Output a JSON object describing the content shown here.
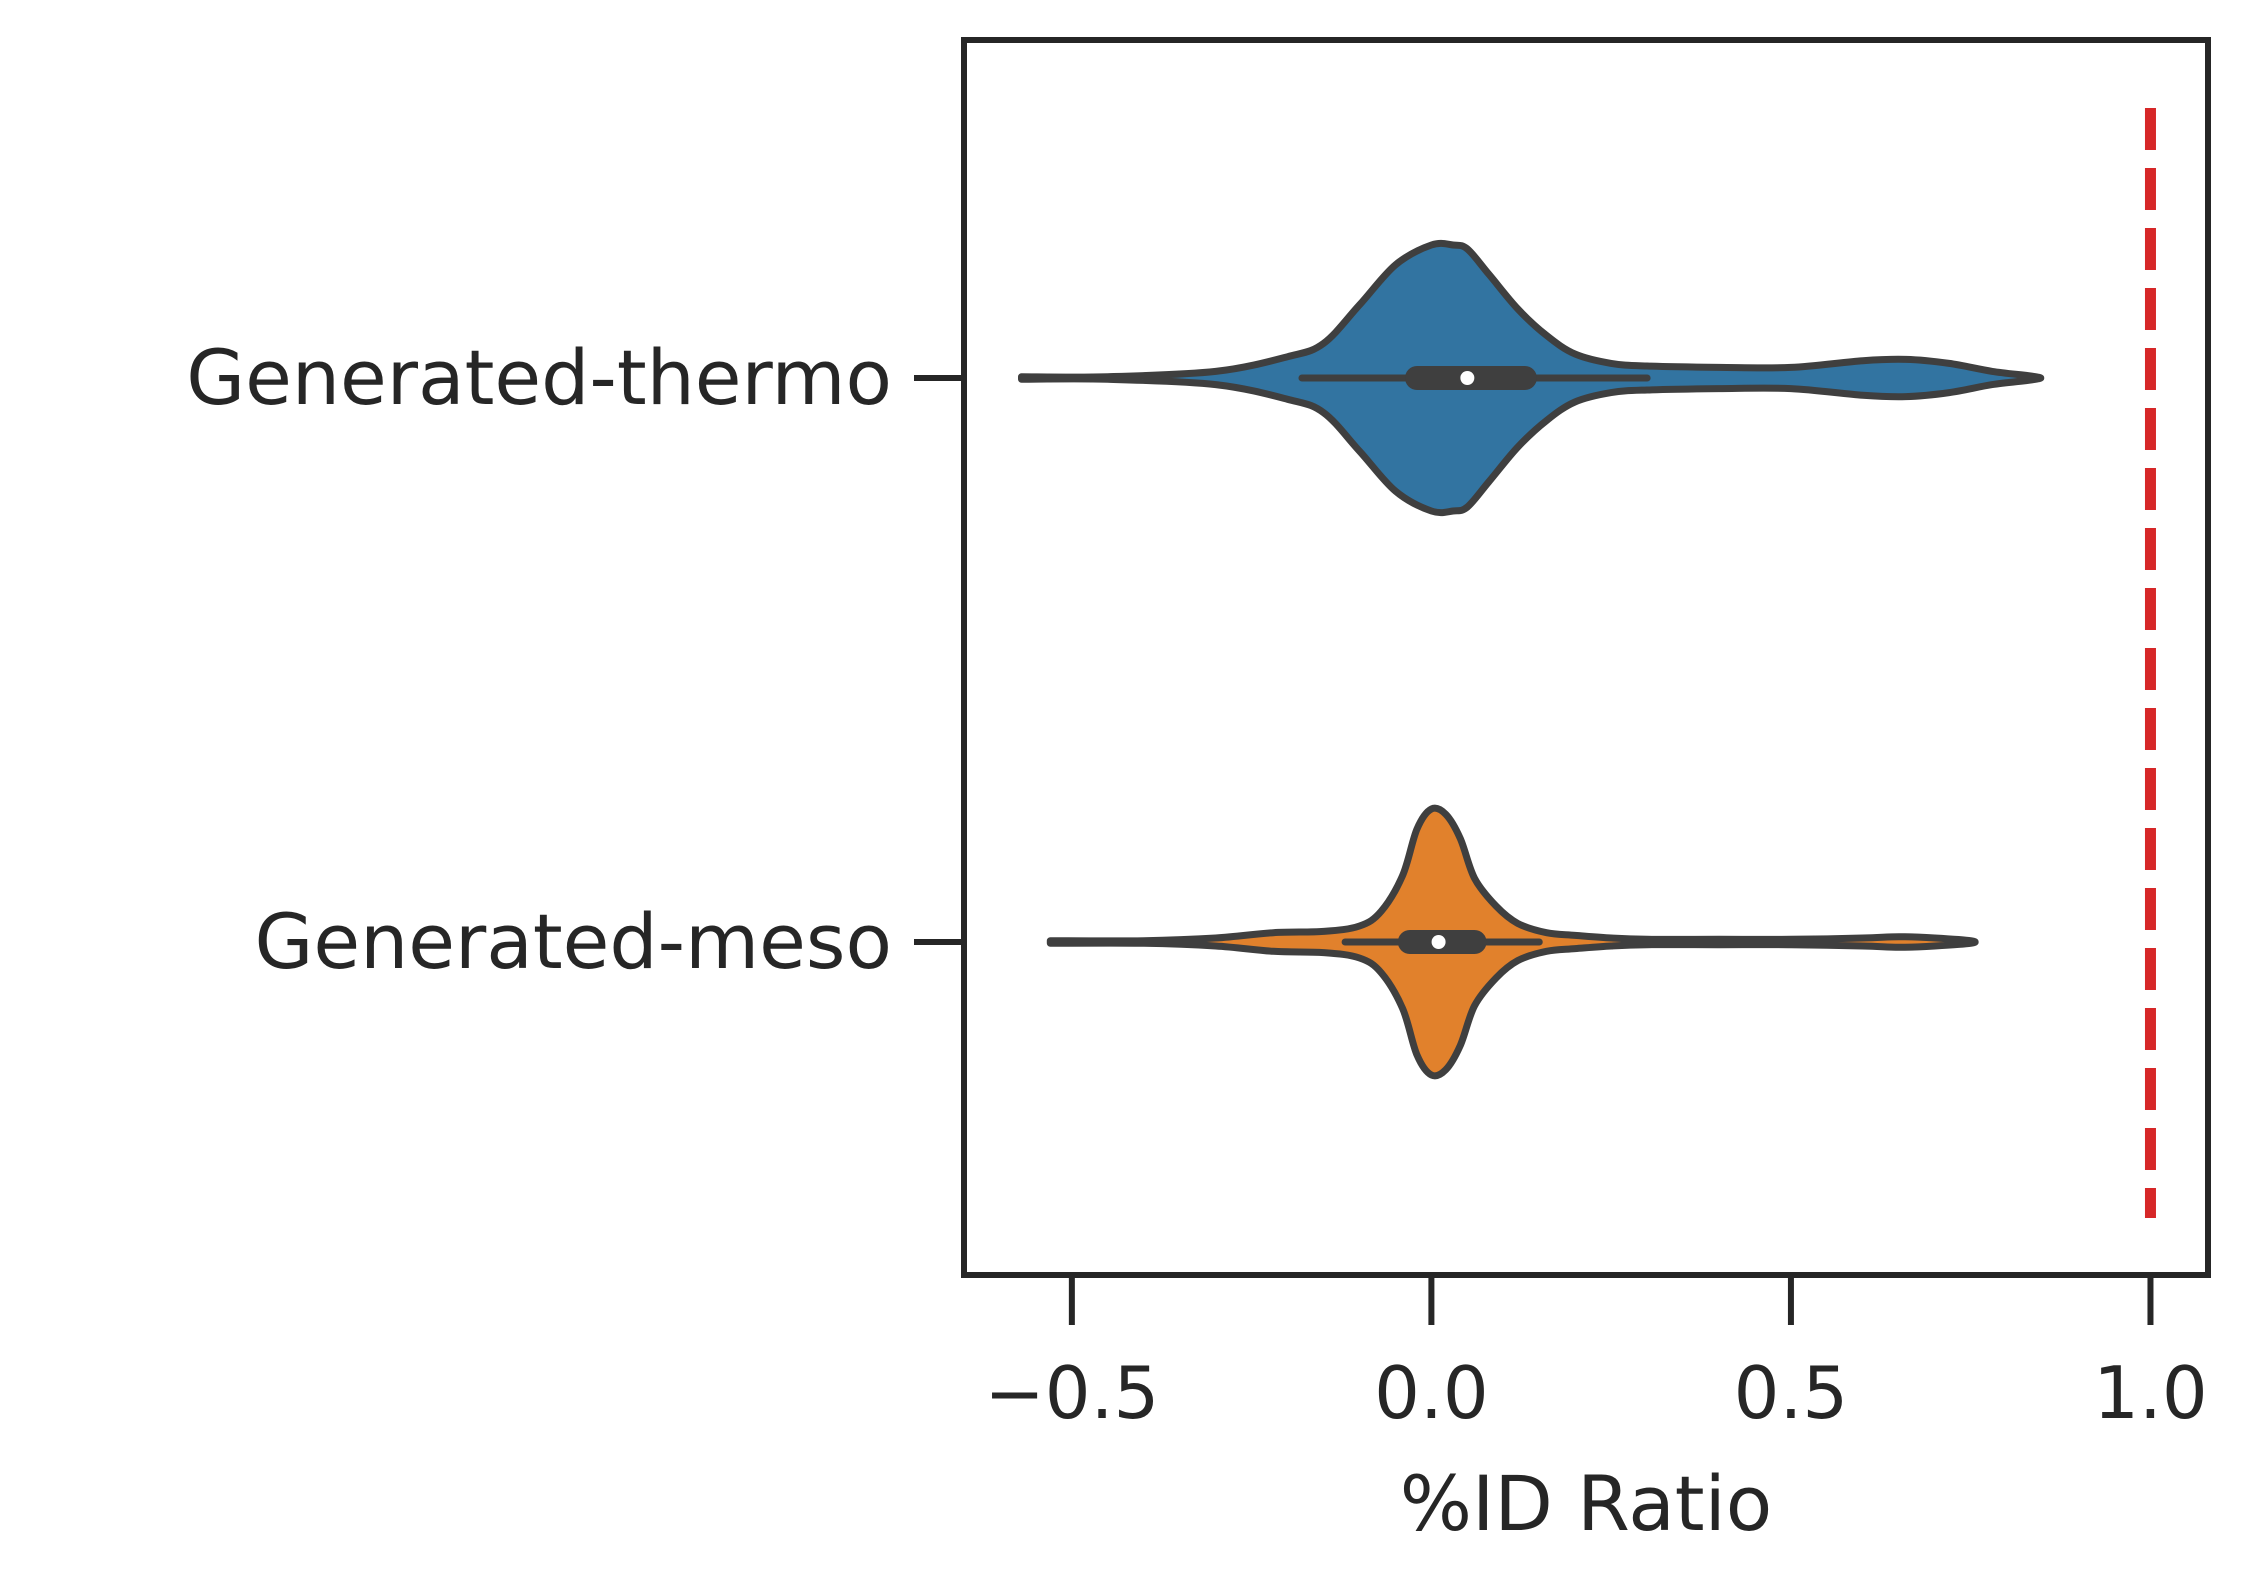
{
  "chart_data": {
    "type": "violin",
    "orientation": "horizontal",
    "title": "",
    "xlabel": "%ID Ratio",
    "ylabel": "",
    "xlim": [
      -0.65,
      1.08
    ],
    "xticks": [
      -0.5,
      0.0,
      0.5,
      1.0
    ],
    "xtick_labels": [
      "−0.5",
      "0.0",
      "0.5",
      "1.0"
    ],
    "categories": [
      "Generated-thermo",
      "Generated-meso"
    ],
    "grid": false,
    "legend": "none",
    "reference_line": {
      "x": 1.0,
      "style": "dashed",
      "color": "#d62728"
    },
    "series": [
      {
        "category": "Generated-thermo",
        "color": "#3274a1",
        "min": -0.57,
        "max": 0.84,
        "q1": -0.02,
        "median": 0.05,
        "q3": 0.13,
        "whisker_low": -0.18,
        "whisker_high": 0.3,
        "density_x": [
          -0.57,
          -0.45,
          -0.3,
          -0.2,
          -0.15,
          -0.1,
          -0.05,
          0.0,
          0.03,
          0.05,
          0.08,
          0.12,
          0.16,
          0.2,
          0.25,
          0.3,
          0.4,
          0.5,
          0.6,
          0.66,
          0.72,
          0.78,
          0.84
        ],
        "density_width": [
          0.01,
          0.01,
          0.05,
          0.16,
          0.26,
          0.55,
          0.85,
          1.0,
          1.0,
          0.97,
          0.78,
          0.52,
          0.32,
          0.18,
          0.11,
          0.09,
          0.08,
          0.08,
          0.13,
          0.14,
          0.11,
          0.05,
          0.01
        ]
      },
      {
        "category": "Generated-meso",
        "color": "#e1812c",
        "min": -0.53,
        "max": 0.75,
        "q1": -0.03,
        "median": 0.01,
        "q3": 0.06,
        "whisker_low": -0.12,
        "whisker_high": 0.15,
        "density_x": [
          -0.53,
          -0.4,
          -0.3,
          -0.22,
          -0.15,
          -0.1,
          -0.07,
          -0.04,
          -0.02,
          0.0,
          0.02,
          0.04,
          0.06,
          0.09,
          0.12,
          0.16,
          0.2,
          0.25,
          0.3,
          0.4,
          0.5,
          0.6,
          0.65,
          0.7,
          0.75
        ],
        "density_width": [
          0.01,
          0.01,
          0.03,
          0.07,
          0.08,
          0.12,
          0.23,
          0.5,
          0.85,
          1.0,
          0.96,
          0.78,
          0.48,
          0.27,
          0.14,
          0.07,
          0.05,
          0.03,
          0.02,
          0.02,
          0.02,
          0.03,
          0.04,
          0.03,
          0.01
        ]
      }
    ]
  }
}
